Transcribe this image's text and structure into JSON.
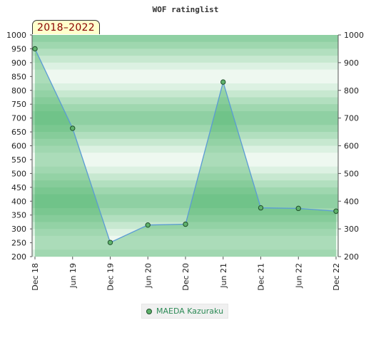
{
  "period_label": "2018–2022",
  "chart_data": {
    "type": "line",
    "title": "WOF ratinglist",
    "categories": [
      "Dec 18",
      "Jun 19",
      "Dec 19",
      "Jun 20",
      "Dec 20",
      "Jun 21",
      "Dec 21",
      "Jun 22",
      "Dec 22"
    ],
    "series": [
      {
        "name": "MAEDA Kazuraku",
        "values": [
          950,
          663,
          251,
          314,
          317,
          830,
          376,
          374,
          364
        ]
      }
    ],
    "ylim": [
      200,
      1000
    ],
    "left_ticks": [
      200,
      250,
      300,
      350,
      400,
      450,
      500,
      550,
      600,
      650,
      700,
      750,
      800,
      850,
      900,
      950,
      1000
    ],
    "right_ticks": [
      200,
      300,
      400,
      500,
      600,
      700,
      800,
      900,
      1000
    ],
    "grid": true,
    "legend_position": "bottom-center",
    "colors": {
      "line": "#5b9bd5",
      "area": "#3fae5f",
      "marker": "#5fb26c",
      "marker_edge": "#1f4f2a"
    }
  }
}
